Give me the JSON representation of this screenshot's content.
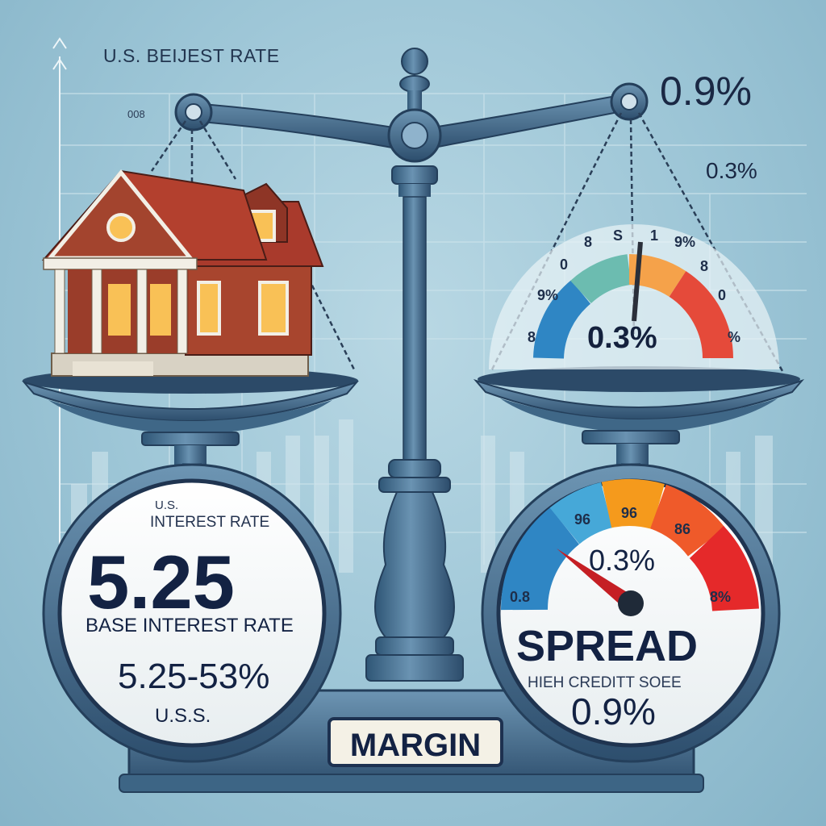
{
  "top": {
    "title": "U.S. BEIJEST RATE",
    "small_label": "008"
  },
  "rates": {
    "big": "0.9%",
    "small": "0.3%"
  },
  "pan_gauge": {
    "value": "0.3%",
    "ticks": [
      "8",
      "9%",
      "0",
      "8",
      "S",
      "1",
      "9%",
      "8",
      "0",
      "%"
    ]
  },
  "dial_left": {
    "top_label": "U.S.",
    "heading": "INTEREST RATE",
    "value": "5.25",
    "caption": "BASE INTEREST RATE",
    "range": "5.25-53%",
    "footer": "U.S.S."
  },
  "dial_right": {
    "ticks": [
      "0.8",
      "96",
      "96",
      "86",
      "8%"
    ],
    "value": "0.3%",
    "title": "SPREAD",
    "subtitle": "HIEH CREDITT SOEE",
    "rate": "0.9%"
  },
  "margin_label": "MARGIN",
  "colors": {
    "background": "#9cc5d6",
    "metal": "#46708f",
    "metal_dark": "#2b4b6a",
    "house_wall": "#a8452e",
    "roof": "#b53a2e",
    "gauge_blue": "#2f86c4",
    "gauge_orange": "#f59a1c",
    "gauge_red": "#e5292a",
    "text_dark": "#132243"
  }
}
